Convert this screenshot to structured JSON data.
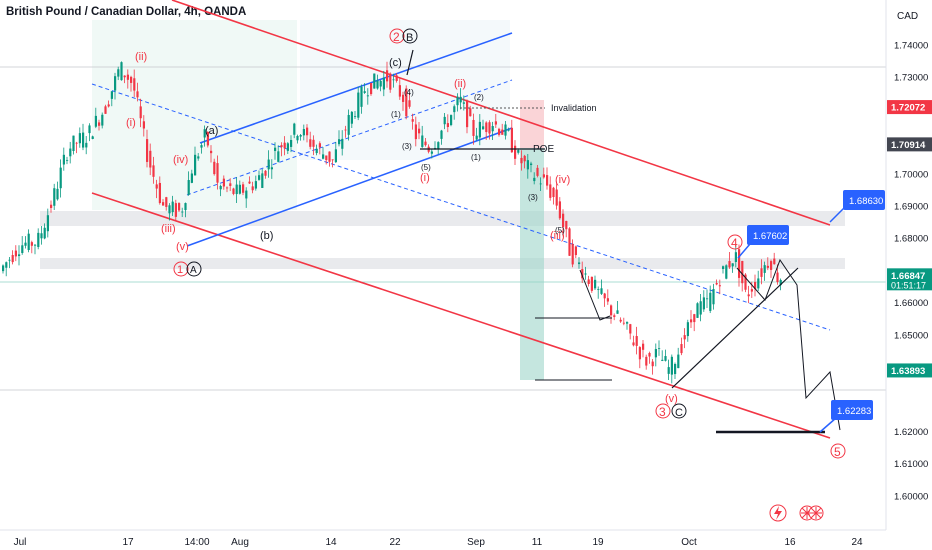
{
  "header": {
    "title": "British Pound / Canadian Dollar, 4h, OANDA",
    "currency": "CAD"
  },
  "chart_data": {
    "type": "candlestick",
    "symbol": "GBPCAD",
    "timeframe": "4h",
    "source": "OANDA",
    "ylim": [
      1.595,
      1.76
    ],
    "y_ticks": [
      "1.74000",
      "1.73000",
      "1.71000",
      "1.70000",
      "1.69000",
      "1.68000",
      "1.66000",
      "1.65000",
      "1.64000",
      "1.62000",
      "1.61000",
      "1.60000"
    ],
    "x_ticks": [
      "Jul",
      "17",
      "14:00",
      "Aug",
      "14",
      "22",
      "Sep",
      "11",
      "19",
      "Oct",
      "16",
      "24"
    ],
    "price_labels": [
      {
        "value": 1.72072,
        "text": "1.72072",
        "color": "#f23645"
      },
      {
        "value": 1.70914,
        "text": "1.70914",
        "color": "#434651"
      },
      {
        "value": 1.66847,
        "text": "1.66847",
        "sub": "01:51:17",
        "color": "#089981"
      },
      {
        "value": 1.63893,
        "text": "1.63893",
        "color": "#089981"
      }
    ],
    "callouts": [
      {
        "text": "1.68630",
        "value": 1.6863
      },
      {
        "text": "1.67602",
        "value": 1.67602
      },
      {
        "text": "1.62283",
        "value": 1.62283
      }
    ],
    "annotations": {
      "invalidation": "Invalidation",
      "poe": "POE",
      "waves_red": [
        "(ii)",
        "(i)",
        "(iv)",
        "(iii)",
        "(v)",
        "(ii)",
        "(i)",
        "(iv)",
        "(iii)",
        "(v)"
      ],
      "waves_dark": [
        "(a)",
        "(b)",
        "(c)",
        "(1)",
        "(3)",
        "(5)",
        "(2)",
        "(4)",
        "(1)",
        "(3)",
        "(5)"
      ],
      "circle_labels": [
        "1",
        "A",
        "2",
        "B",
        "3",
        "C",
        "4",
        "5"
      ]
    }
  }
}
